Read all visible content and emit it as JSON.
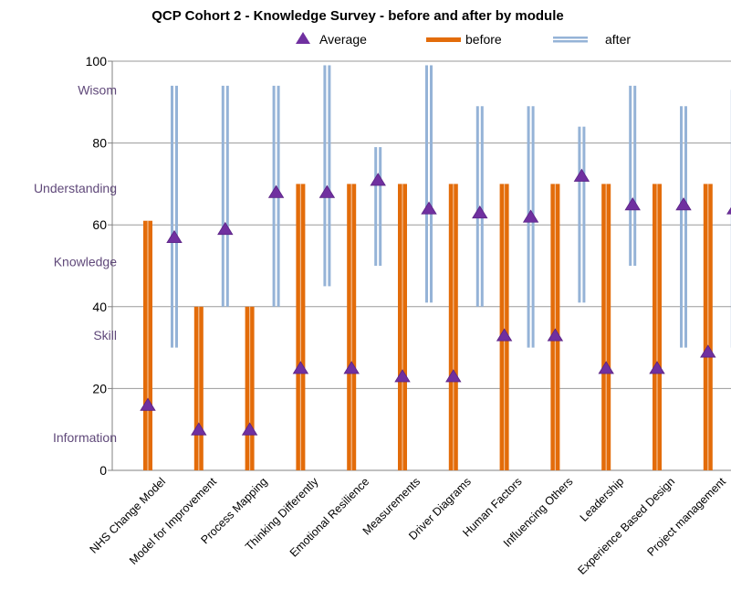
{
  "chart_data": {
    "type": "range-bar",
    "title": "QCP Cohort 2 - Knowledge Survey - before and after by module",
    "legend": {
      "position": "top",
      "entries": [
        {
          "key": "average",
          "label": "Average",
          "marker": "triangle",
          "color": "#7030A0"
        },
        {
          "key": "before",
          "label": "before",
          "color": "#E36C0A"
        },
        {
          "key": "after",
          "label": "after",
          "color": "#95B3D7"
        }
      ]
    },
    "ylim": [
      0,
      100
    ],
    "yticks": [
      "0",
      "20",
      "40",
      "60",
      "80",
      "100"
    ],
    "ytick_values": [
      0,
      20,
      40,
      60,
      80,
      100
    ],
    "level_labels": [
      {
        "label": "Wisom",
        "value": 93
      },
      {
        "label": "Understanding",
        "value": 69
      },
      {
        "label": "Knowledge",
        "value": 51
      },
      {
        "label": "Skill",
        "value": 33
      },
      {
        "label": "Information",
        "value": 8
      }
    ],
    "level_label_color": "#60497A",
    "grid": "horizontal",
    "categories": [
      "NHS Change Model",
      "Model for Improvement",
      "Process Mapping",
      "Thinking Differently",
      "Emotional Resilience",
      "Measurements",
      "Driver Diagrams",
      "Human Factors",
      "Influencing Others",
      "Leadership",
      "Experience Based Design",
      "Project management"
    ],
    "series": [
      {
        "name": "before",
        "color": "#E36C0A",
        "ranges": [
          [
            0,
            61
          ],
          [
            0,
            40
          ],
          [
            0,
            40
          ],
          [
            0,
            70
          ],
          [
            0,
            70
          ],
          [
            0,
            70
          ],
          [
            0,
            70
          ],
          [
            0,
            70
          ],
          [
            0,
            70
          ],
          [
            0,
            70
          ],
          [
            0,
            70
          ],
          [
            0,
            70
          ]
        ],
        "averages": [
          16,
          10,
          10,
          25,
          25,
          23,
          23,
          33,
          33,
          25,
          25,
          29
        ]
      },
      {
        "name": "after",
        "color": "#95B3D7",
        "ranges": [
          [
            30,
            94
          ],
          [
            40,
            94
          ],
          [
            40,
            94
          ],
          [
            45,
            99
          ],
          [
            50,
            79
          ],
          [
            41,
            99
          ],
          [
            40,
            89
          ],
          [
            30,
            89
          ],
          [
            41,
            84
          ],
          [
            50,
            94
          ],
          [
            30,
            89
          ],
          [
            30,
            93
          ]
        ],
        "averages": [
          57,
          59,
          68,
          68,
          71,
          64,
          63,
          62,
          72,
          65,
          65,
          64
        ]
      }
    ]
  }
}
